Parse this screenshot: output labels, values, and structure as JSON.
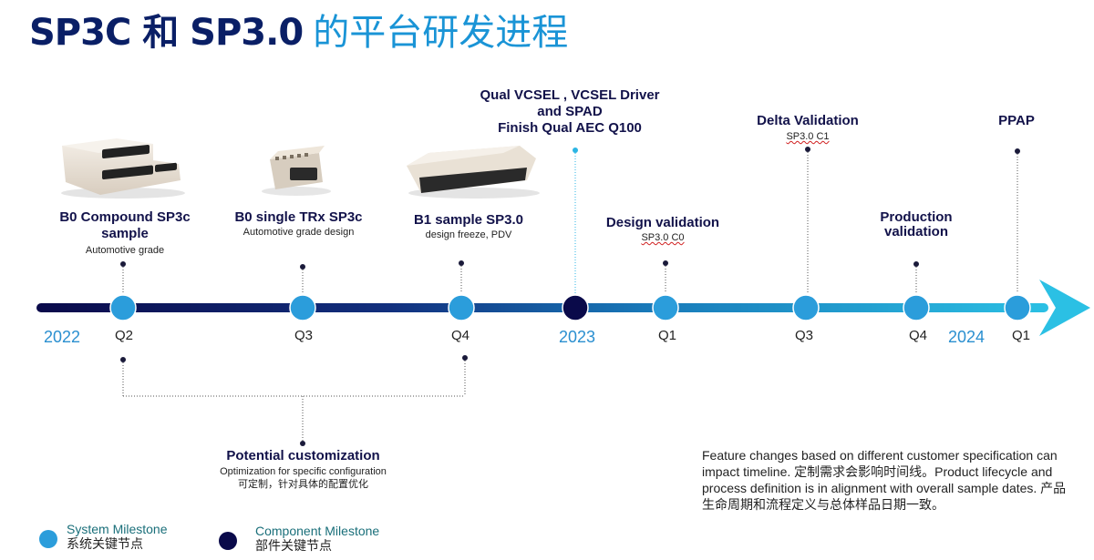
{
  "title": {
    "part1": "SP3C 和 SP3.0",
    "part2": "的平台研发进程"
  },
  "years": [
    "2022",
    "2023",
    "2024"
  ],
  "milestones": [
    {
      "quarter": "Q2",
      "title": "B0 Compound SP3c sample",
      "subtitle": "Automotive grade"
    },
    {
      "quarter": "Q3",
      "title": "B0 single TRx SP3c",
      "subtitle": "Automotive grade design"
    },
    {
      "quarter": "Q4",
      "title": "B1 sample SP3.0",
      "subtitle": "design freeze, PDV"
    },
    {
      "title_lines": [
        "Qual VCSEL , VCSEL Driver",
        "and SPAD",
        "Finish Qual AEC Q100"
      ]
    },
    {
      "quarter": "Q1",
      "title": "Design validation",
      "subtitle": "SP3.0 C0"
    },
    {
      "quarter": "Q3",
      "title": "Delta Validation",
      "subtitle": "SP3.0 C1"
    },
    {
      "quarter": "Q4",
      "title_lines": [
        "Production",
        "validation"
      ]
    },
    {
      "quarter": "Q1",
      "title": "PPAP"
    }
  ],
  "customization": {
    "title": "Potential customization",
    "subtitle": "Optimization for specific configuration",
    "subtitle_cn": "可定制，针对具体的配置优化"
  },
  "note": "Feature changes based on different customer specification can impact timeline. 定制需求会影响时间线。Product lifecycle and process definition is in alignment with overall sample dates. 产品生命周期和流程定义与总体样品日期一致。",
  "legend": {
    "system": {
      "label": "System Milestone",
      "label_cn": "系统关键节点",
      "color": "#2b9ddb"
    },
    "component": {
      "label": "Component Milestone",
      "label_cn": "部件关键节点",
      "color": "#0a0a4a"
    }
  },
  "colors": {
    "arrow_start": "#0a0a4a",
    "arrow_end": "#2bc0e4"
  }
}
